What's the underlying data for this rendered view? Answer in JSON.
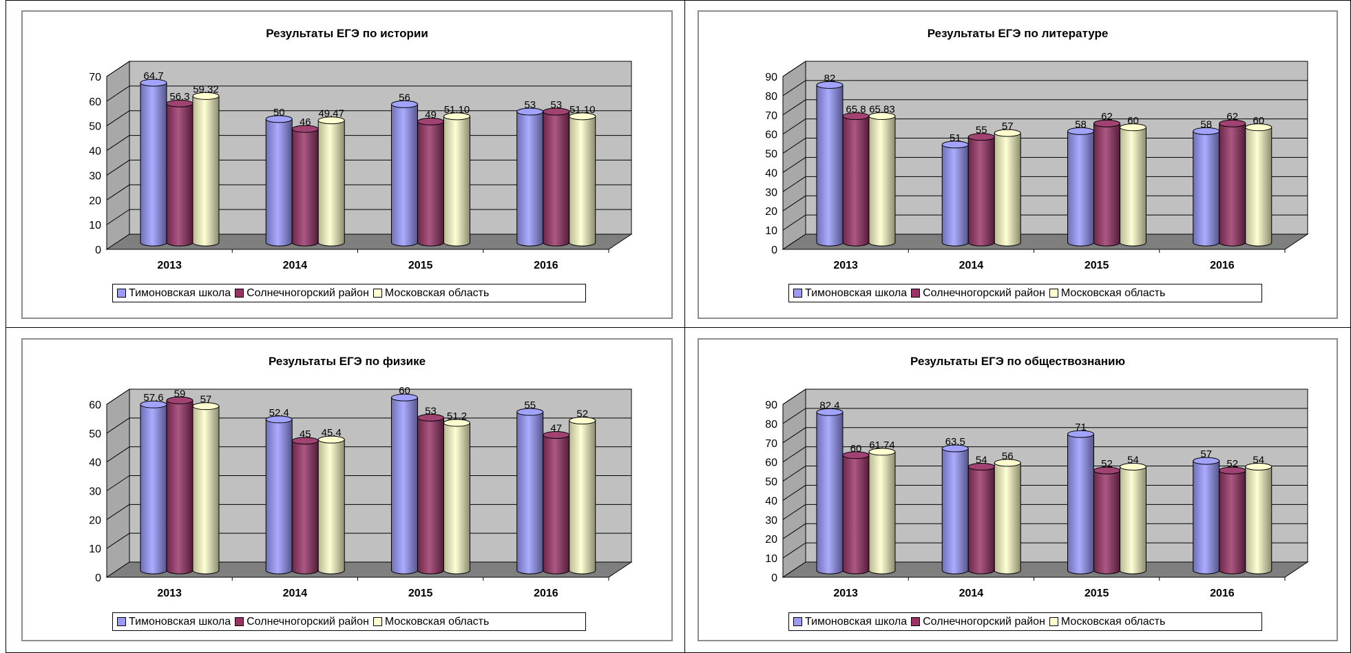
{
  "legend_items": [
    {
      "label": "Тимоновская школа",
      "color": "#9a9aff"
    },
    {
      "label": "Солнечногорский район",
      "color": "#993366"
    },
    {
      "label": "Московская область",
      "color": "#ffffcc"
    }
  ],
  "chart_data": [
    {
      "type": "bar",
      "title": "Результаты ЕГЭ по истории",
      "categories": [
        "2013",
        "2014",
        "2015",
        "2016"
      ],
      "series": [
        {
          "name": "Тимоновская школа",
          "values": [
            64.7,
            50,
            56,
            53
          ],
          "labels": [
            "64.7",
            "50",
            "56",
            "53"
          ]
        },
        {
          "name": "Солнечногорский район",
          "values": [
            56.3,
            46,
            49,
            53
          ],
          "labels": [
            "56.3",
            "46",
            "49",
            "53"
          ]
        },
        {
          "name": "Московская область",
          "values": [
            59.32,
            49.47,
            51.1,
            51.1
          ],
          "labels": [
            "59.32",
            "49.47",
            "51.10",
            "51.10"
          ]
        }
      ],
      "ylim": [
        0,
        70
      ],
      "yticks": [
        0,
        10,
        20,
        30,
        40,
        50,
        60,
        70
      ],
      "grid": true,
      "legend": "bottom"
    },
    {
      "type": "bar",
      "title": "Результаты ЕГЭ по литературе",
      "categories": [
        "2013",
        "2014",
        "2015",
        "2016"
      ],
      "series": [
        {
          "name": "Тимоновская школа",
          "values": [
            82,
            51,
            58,
            58
          ],
          "labels": [
            "82",
            "51",
            "58",
            "58"
          ]
        },
        {
          "name": "Солнечногорский район",
          "values": [
            65.8,
            55,
            62,
            62
          ],
          "labels": [
            "65.8",
            "55",
            "62",
            "62"
          ]
        },
        {
          "name": "Московская область",
          "values": [
            65.83,
            57,
            60,
            60
          ],
          "labels": [
            "65.83",
            "57",
            "60",
            "60"
          ]
        }
      ],
      "ylim": [
        0,
        90
      ],
      "yticks": [
        0,
        10,
        20,
        30,
        40,
        50,
        60,
        70,
        80,
        90
      ],
      "grid": true,
      "legend": "bottom"
    },
    {
      "type": "bar",
      "title": "Результаты ЕГЭ по физике",
      "categories": [
        "2013",
        "2014",
        "2015",
        "2016"
      ],
      "series": [
        {
          "name": "Тимоновская школа",
          "values": [
            57.6,
            52.4,
            60,
            55
          ],
          "labels": [
            "57.6",
            "52.4",
            "60",
            "55"
          ]
        },
        {
          "name": "Солнечногорский район",
          "values": [
            59,
            45,
            53,
            47
          ],
          "labels": [
            "59",
            "45",
            "53",
            "47"
          ]
        },
        {
          "name": "Московская область",
          "values": [
            57,
            45.4,
            51.2,
            52
          ],
          "labels": [
            "57",
            "45.4",
            "51.2",
            "52"
          ]
        }
      ],
      "ylim": [
        0,
        60
      ],
      "yticks": [
        0,
        10,
        20,
        30,
        40,
        50,
        60
      ],
      "grid": true,
      "legend": "bottom"
    },
    {
      "type": "bar",
      "title": "Результаты ЕГЭ по обществознанию",
      "categories": [
        "2013",
        "2014",
        "2015",
        "2016"
      ],
      "series": [
        {
          "name": "Тимоновская школа",
          "values": [
            82.4,
            63.5,
            71,
            57
          ],
          "labels": [
            "82.4",
            "63.5",
            "71",
            "57"
          ]
        },
        {
          "name": "Солнечногорский район",
          "values": [
            60,
            54,
            52,
            52
          ],
          "labels": [
            "60",
            "54",
            "52",
            "52"
          ]
        },
        {
          "name": "Московская область",
          "values": [
            61.74,
            56,
            54,
            54
          ],
          "labels": [
            "61.74",
            "56",
            "54",
            "54"
          ]
        }
      ],
      "ylim": [
        0,
        90
      ],
      "yticks": [
        0,
        10,
        20,
        30,
        40,
        50,
        60,
        70,
        80,
        90
      ],
      "grid": true,
      "legend": "bottom"
    }
  ]
}
